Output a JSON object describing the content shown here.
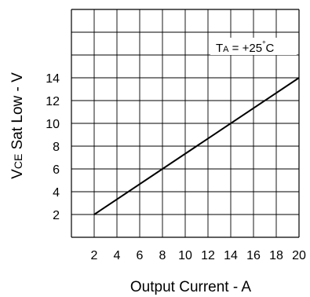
{
  "chart_data": {
    "type": "line",
    "xlabel": "Output Current - A",
    "ylabel_main": "V",
    "ylabel_sub": "CE",
    "ylabel_rest": " Sat Low - V",
    "x_ticks": [
      "2",
      "4",
      "6",
      "8",
      "10",
      "12",
      "14",
      "16",
      "18",
      "20"
    ],
    "y_ticks": [
      "2",
      "4",
      "6",
      "8",
      "10",
      "12",
      "14"
    ],
    "xlim": [
      0,
      20
    ],
    "ylim": [
      0,
      20
    ],
    "grid": true,
    "annotation": {
      "main": "T",
      "sub": "A",
      "rest": " = +25",
      "degree": "°",
      "unit": "C"
    },
    "series": [
      {
        "x": [
          2,
          20
        ],
        "y": [
          2,
          14
        ]
      }
    ],
    "line_color": "#000000"
  }
}
